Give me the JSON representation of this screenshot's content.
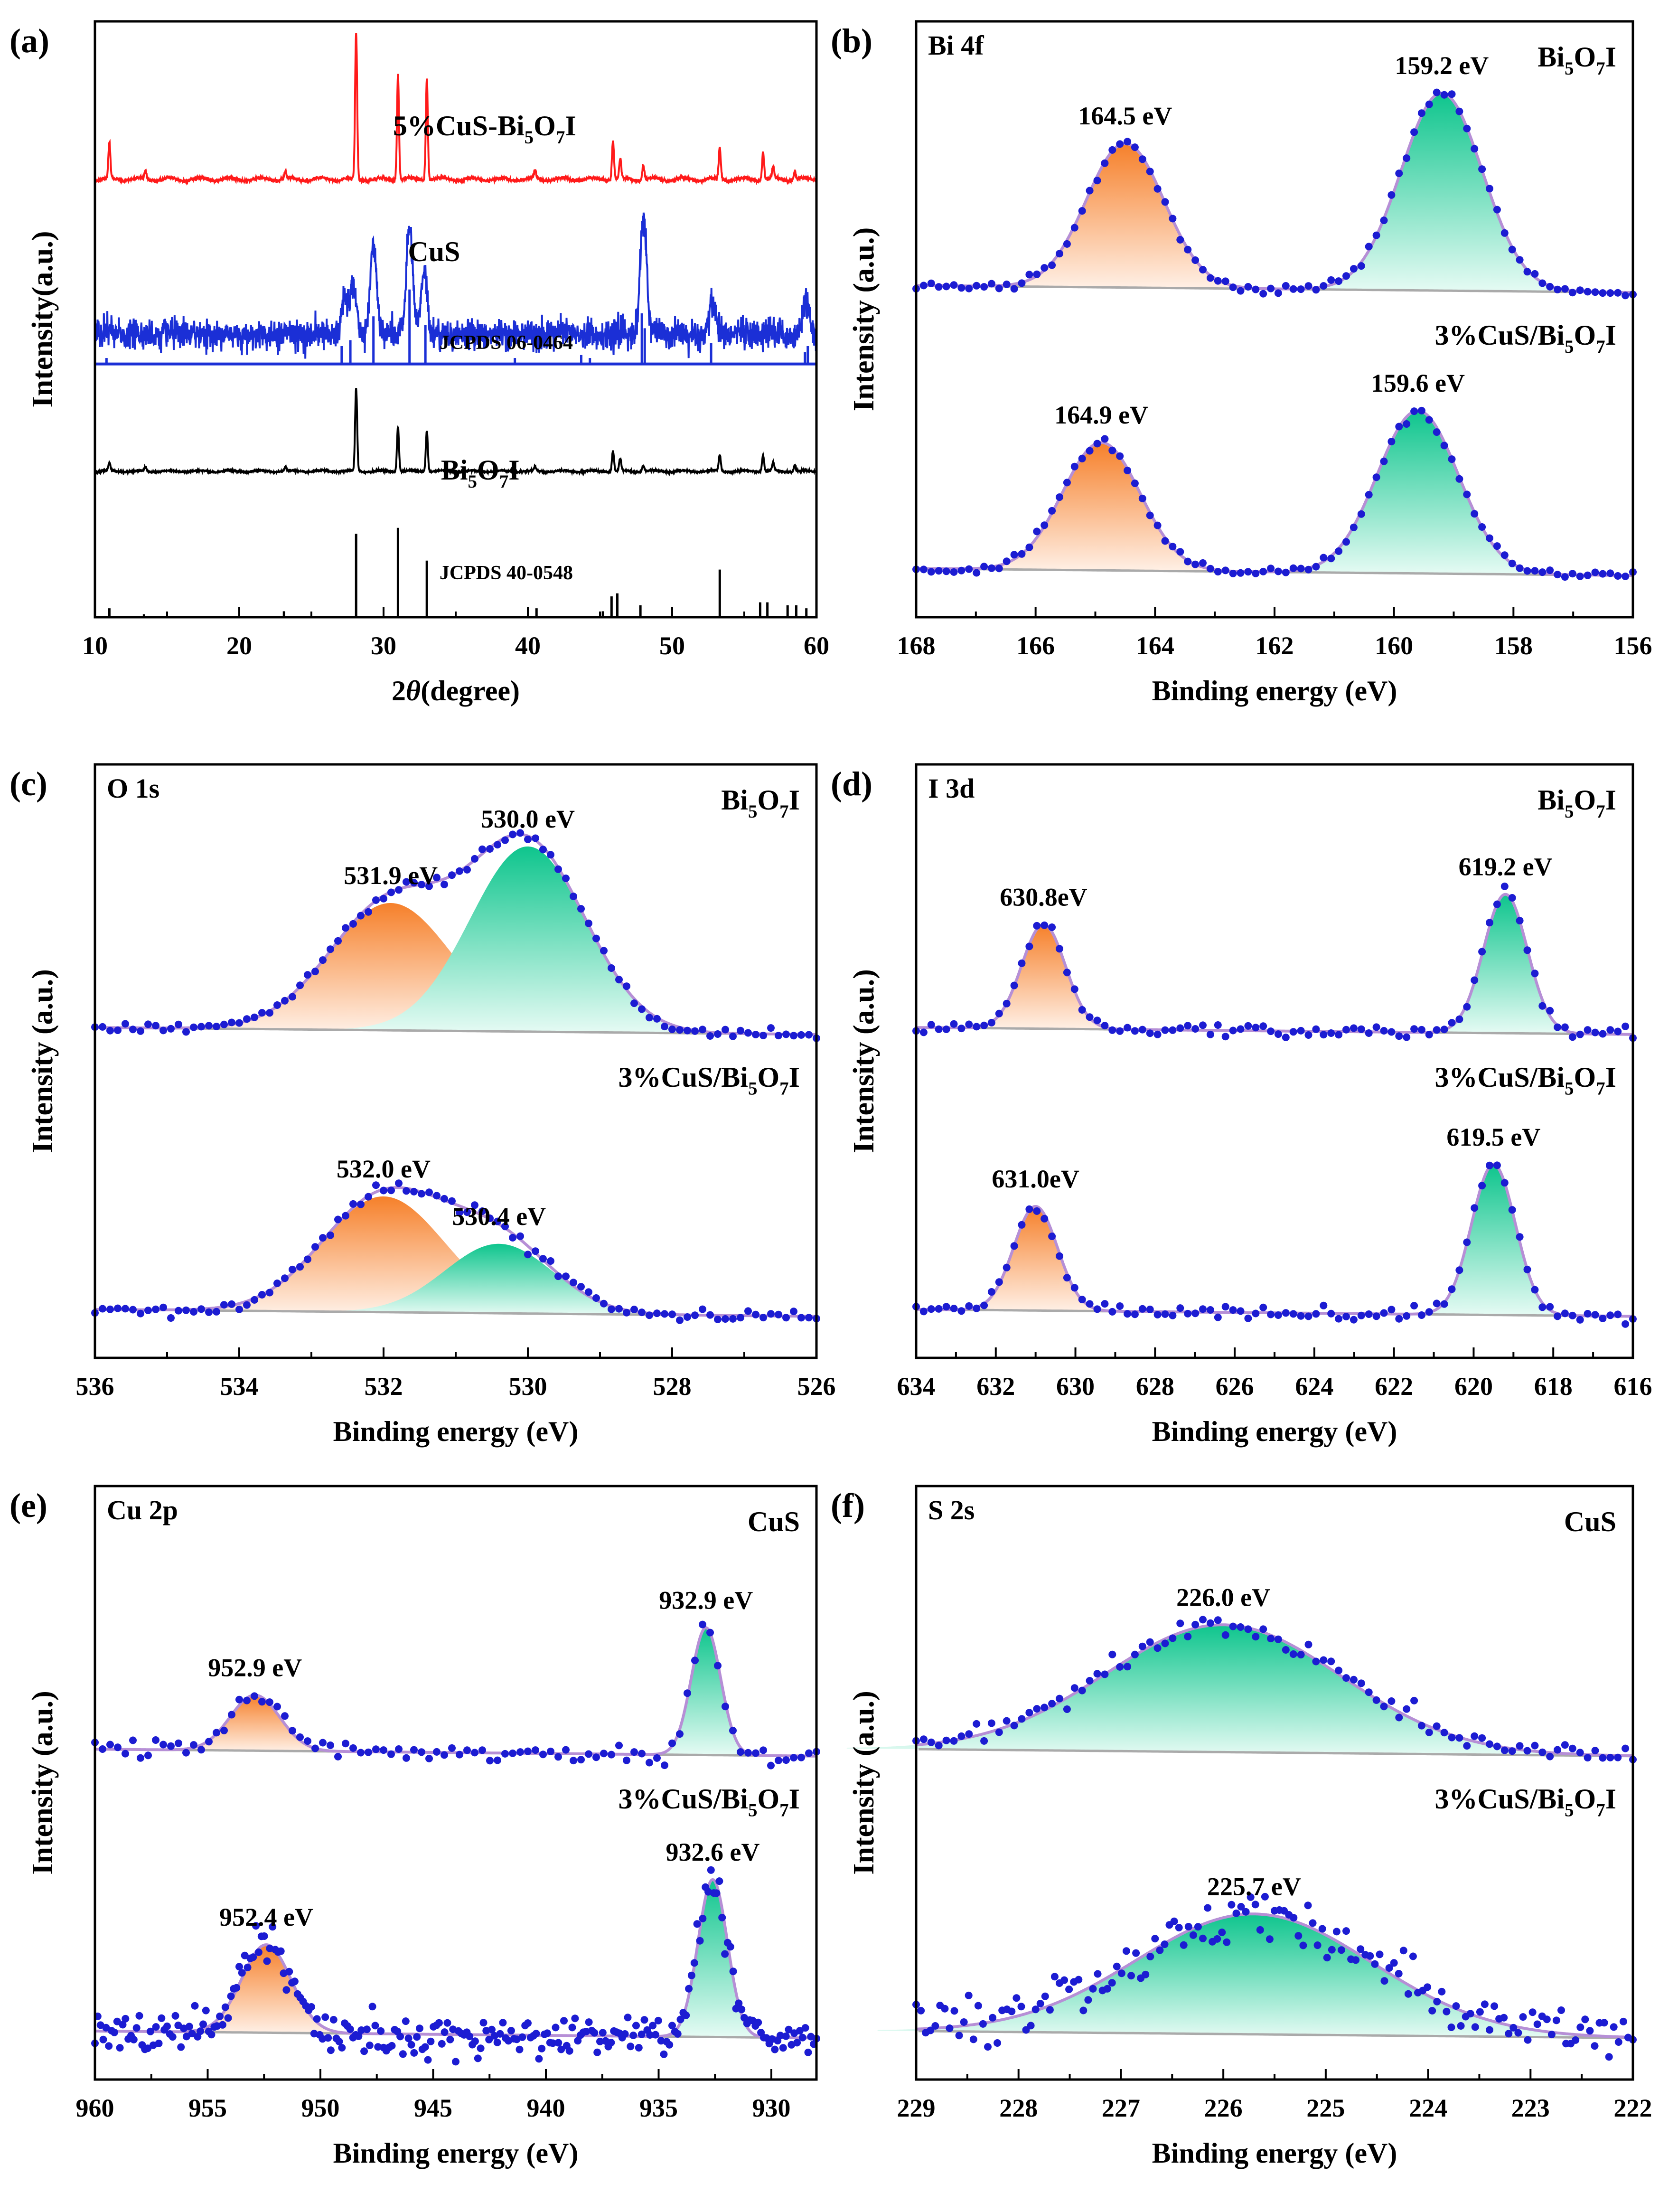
{
  "colors": {
    "xrd_composite": "#ff1a1a",
    "xrd_cus": "#1b2fd6",
    "xrd_bi5o7i": "#000000",
    "ref_cus": "#1b2fd6",
    "ref_bi5o7i": "#000000",
    "fit_envelope": "#b68fd6",
    "raw_points": "#1c1cd2",
    "background": "#aaaaaa",
    "peak_orange_top": "#f6802a",
    "peak_orange_bottom": "#fff0e6",
    "peak_green_top": "#0ec58d",
    "peak_green_bottom": "#e6fbf4",
    "sample_label": "#a0155b"
  },
  "chart_data": [
    {
      "panel": "(a)",
      "type": "line",
      "title": "",
      "xlabel": "2θ(degree)",
      "xlabel_parts": {
        "prefix": "2",
        "symbol": "θ",
        "suffix": "(degree)"
      },
      "ylabel": "Intensity(a.u.)",
      "xlim": [
        10,
        60
      ],
      "xticks": [
        10,
        20,
        30,
        40,
        50,
        60
      ],
      "series": [
        {
          "name": "5%CuS-Bi5O7I",
          "label_parts": [
            "5%CuS-Bi",
            "5",
            "O",
            "7",
            "I"
          ],
          "baseline": 1.0,
          "peaks": [
            [
              11.0,
              0.09
            ],
            [
              13.5,
              0.02
            ],
            [
              23.2,
              0.02
            ],
            [
              28.1,
              0.37
            ],
            [
              31.0,
              0.27
            ],
            [
              33.0,
              0.26
            ],
            [
              40.5,
              0.02
            ],
            [
              45.9,
              0.1
            ],
            [
              46.4,
              0.05
            ],
            [
              48.0,
              0.04
            ],
            [
              53.3,
              0.08
            ],
            [
              56.3,
              0.07
            ],
            [
              57.0,
              0.03
            ],
            [
              58.5,
              0.02
            ]
          ]
        },
        {
          "name": "CuS",
          "label_parts": [
            "CuS"
          ],
          "baseline": 0.6,
          "peaks": [
            [
              27.3,
              0.08
            ],
            [
              27.9,
              0.11
            ],
            [
              29.3,
              0.21
            ],
            [
              31.8,
              0.25
            ],
            [
              32.8,
              0.15
            ],
            [
              48.0,
              0.28
            ],
            [
              52.8,
              0.07
            ],
            [
              59.3,
              0.08
            ]
          ]
        },
        {
          "name": "Bi5O7I",
          "label_parts": [
            "Bi",
            "5",
            "O",
            "7",
            "I"
          ],
          "baseline": 0.0,
          "peaks": [
            [
              11.0,
              0.04
            ],
            [
              13.5,
              0.02
            ],
            [
              23.2,
              0.02
            ],
            [
              28.1,
              0.4
            ],
            [
              31.0,
              0.22
            ],
            [
              33.0,
              0.2
            ],
            [
              40.5,
              0.02
            ],
            [
              45.9,
              0.1
            ],
            [
              46.4,
              0.06
            ],
            [
              48.0,
              0.03
            ],
            [
              53.3,
              0.08
            ],
            [
              56.3,
              0.08
            ],
            [
              57.0,
              0.04
            ],
            [
              58.5,
              0.03
            ]
          ]
        }
      ],
      "references": [
        {
          "name": "JCPDS 06-0464",
          "sticks": [
            [
              10.8,
              0.02
            ],
            [
              27.1,
              0.06
            ],
            [
              27.7,
              0.08
            ],
            [
              29.3,
              0.16
            ],
            [
              31.8,
              0.25
            ],
            [
              32.9,
              0.13
            ],
            [
              39.1,
              0.02
            ],
            [
              43.7,
              0.03
            ],
            [
              44.3,
              0.02
            ],
            [
              47.9,
              0.17
            ],
            [
              48.1,
              0.12
            ],
            [
              52.7,
              0.07
            ],
            [
              59.2,
              0.04
            ],
            [
              59.4,
              0.06
            ]
          ]
        },
        {
          "name": "JCPDS 40-0548",
          "sticks": [
            [
              11.0,
              0.03
            ],
            [
              13.4,
              0.01
            ],
            [
              23.1,
              0.02
            ],
            [
              28.1,
              0.28
            ],
            [
              31.0,
              0.3
            ],
            [
              33.0,
              0.19
            ],
            [
              40.6,
              0.03
            ],
            [
              45.2,
              0.02
            ],
            [
              45.8,
              0.07
            ],
            [
              46.2,
              0.08
            ],
            [
              47.8,
              0.04
            ],
            [
              53.3,
              0.16
            ],
            [
              56.1,
              0.05
            ],
            [
              56.6,
              0.05
            ],
            [
              58.0,
              0.04
            ],
            [
              58.6,
              0.04
            ],
            [
              59.3,
              0.03
            ]
          ]
        }
      ]
    },
    {
      "panel": "(b)",
      "element": "Bi 4f",
      "type": "line",
      "xlabel": "Binding energy (eV)",
      "ylabel": "Intensity (a.u.)",
      "xlim": [
        168,
        156
      ],
      "xticks": [
        168,
        166,
        164,
        162,
        160,
        158,
        156
      ],
      "samples": [
        {
          "name": "Bi5O7I",
          "label_parts": [
            "Bi",
            "5",
            "O",
            "7",
            "I"
          ],
          "offset": 1.0,
          "peaks": [
            {
              "center": 164.5,
              "label": "164.5 eV",
              "height": 0.62,
              "width": 0.65,
              "color": "orange"
            },
            {
              "center": 159.2,
              "label": "159.2 eV",
              "height": 0.85,
              "width": 0.68,
              "color": "green"
            }
          ]
        },
        {
          "name": "3%CuS/Bi5O7I",
          "label_parts": [
            "3%CuS/Bi",
            "5",
            "O",
            "7",
            "I"
          ],
          "offset": 0.0,
          "peaks": [
            {
              "center": 164.9,
              "label": "164.9 eV",
              "height": 0.55,
              "width": 0.65,
              "color": "orange"
            },
            {
              "center": 159.6,
              "label": "159.6 eV",
              "height": 0.7,
              "width": 0.68,
              "color": "green"
            }
          ]
        }
      ]
    },
    {
      "panel": "(c)",
      "element": "O 1s",
      "type": "line",
      "xlabel": "Binding energy (eV)",
      "ylabel": "Intensity (a.u.)",
      "xlim": [
        536,
        526
      ],
      "xticks": [
        536,
        534,
        532,
        530,
        528,
        526
      ],
      "samples": [
        {
          "name": "Bi5O7I",
          "label_parts": [
            "Bi",
            "5",
            "O",
            "7",
            "I"
          ],
          "offset": 1.0,
          "peaks": [
            {
              "center": 531.9,
              "label": "531.9 eV",
              "height": 0.55,
              "width": 0.85,
              "color": "orange"
            },
            {
              "center": 530.0,
              "label": "530.0 eV",
              "height": 0.8,
              "width": 0.8,
              "color": "green"
            }
          ]
        },
        {
          "name": "3%CuS/Bi5O7I",
          "label_parts": [
            "3%CuS/Bi",
            "5",
            "O",
            "7",
            "I"
          ],
          "offset": 0.0,
          "peaks": [
            {
              "center": 532.0,
              "label": "532.0 eV",
              "height": 0.5,
              "width": 0.85,
              "color": "orange"
            },
            {
              "center": 530.4,
              "label": "530.4 eV",
              "height": 0.3,
              "width": 0.75,
              "color": "green"
            }
          ]
        }
      ]
    },
    {
      "panel": "(d)",
      "element": "I 3d",
      "type": "line",
      "xlabel": "Binding energy (eV)",
      "ylabel": "Intensity (a.u.)",
      "xlim": [
        634,
        616
      ],
      "xticks": [
        634,
        632,
        630,
        628,
        626,
        624,
        622,
        620,
        618,
        616
      ],
      "samples": [
        {
          "name": "Bi5O7I",
          "label_parts": [
            "Bi",
            "5",
            "O",
            "7",
            "I"
          ],
          "offset": 1.0,
          "peaks": [
            {
              "center": 630.8,
              "label": "630.8eV",
              "height": 0.45,
              "width": 0.55,
              "color": "orange"
            },
            {
              "center": 619.2,
              "label": "619.2 eV",
              "height": 0.6,
              "width": 0.55,
              "color": "green"
            }
          ]
        },
        {
          "name": "3%CuS/Bi5O7I",
          "label_parts": [
            "3%CuS/Bi",
            "5",
            "O",
            "7",
            "I"
          ],
          "offset": 0.0,
          "peaks": [
            {
              "center": 631.0,
              "label": "631.0eV",
              "height": 0.45,
              "width": 0.55,
              "color": "orange"
            },
            {
              "center": 619.5,
              "label": "619.5 eV",
              "height": 0.65,
              "width": 0.55,
              "color": "green"
            }
          ]
        }
      ]
    },
    {
      "panel": "(e)",
      "element": "Cu 2p",
      "type": "line",
      "xlabel": "Binding energy (eV)",
      "ylabel": "Intensity (a.u.)",
      "xlim": [
        960,
        928
      ],
      "xticks": [
        960,
        955,
        950,
        945,
        940,
        935,
        930
      ],
      "samples": [
        {
          "name": "CuS",
          "label_parts": [
            "CuS"
          ],
          "offset": 1.0,
          "peaks": [
            {
              "center": 952.9,
              "label": "952.9 eV",
              "height": 0.24,
              "width": 1.1,
              "color": "orange"
            },
            {
              "center": 932.9,
              "label": "932.9 eV",
              "height": 0.55,
              "width": 0.65,
              "color": "green"
            }
          ]
        },
        {
          "name": "3%CuS/Bi5O7I",
          "label_parts": [
            "3%CuS/Bi",
            "5",
            "O",
            "7",
            "I"
          ],
          "offset": 0.0,
          "peaks": [
            {
              "center": 952.4,
              "label": "952.4 eV",
              "height": 0.38,
              "width": 1.1,
              "color": "orange"
            },
            {
              "center": 932.6,
              "label": "932.6 eV",
              "height": 0.68,
              "width": 0.65,
              "color": "green"
            }
          ]
        }
      ]
    },
    {
      "panel": "(f)",
      "element": "S 2s",
      "type": "line",
      "xlabel": "Binding energy (eV)",
      "ylabel": "Intensity (a.u.)",
      "xlim": [
        229,
        222
      ],
      "xticks": [
        229,
        228,
        227,
        226,
        225,
        224,
        223,
        222
      ],
      "samples": [
        {
          "name": "CuS",
          "label_parts": [
            "CuS"
          ],
          "offset": 1.0,
          "peaks": [
            {
              "center": 226.0,
              "label": "226.0 eV",
              "height": 0.55,
              "width": 1.15,
              "color": "green"
            }
          ]
        },
        {
          "name": "3%CuS/Bi5O7I",
          "label_parts": [
            "3%CuS/Bi",
            "5",
            "O",
            "7",
            "I"
          ],
          "offset": 0.0,
          "peaks": [
            {
              "center": 225.7,
              "label": "225.7 eV",
              "height": 0.52,
              "width": 1.15,
              "color": "green"
            }
          ]
        }
      ]
    }
  ]
}
